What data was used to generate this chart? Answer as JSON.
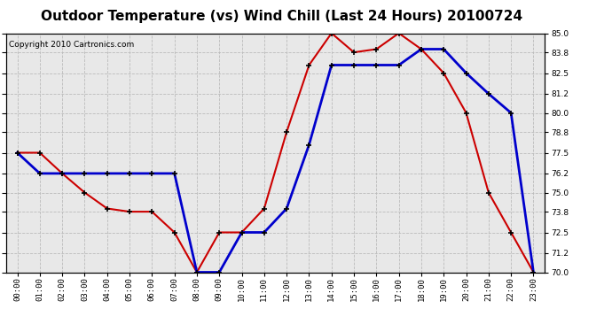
{
  "title": "Outdoor Temperature (vs) Wind Chill (Last 24 Hours) 20100724",
  "copyright": "Copyright 2010 Cartronics.com",
  "hours": [
    "00:00",
    "01:00",
    "02:00",
    "03:00",
    "04:00",
    "05:00",
    "06:00",
    "07:00",
    "08:00",
    "09:00",
    "10:00",
    "11:00",
    "12:00",
    "13:00",
    "14:00",
    "15:00",
    "16:00",
    "17:00",
    "18:00",
    "19:00",
    "20:00",
    "21:00",
    "22:00",
    "23:00"
  ],
  "outdoor_temp": [
    77.5,
    77.5,
    76.2,
    75.0,
    74.0,
    73.8,
    73.8,
    72.5,
    70.0,
    72.5,
    72.5,
    74.0,
    78.8,
    83.0,
    85.0,
    83.8,
    84.0,
    85.0,
    84.0,
    82.5,
    80.0,
    75.0,
    72.5,
    70.0
  ],
  "wind_chill": [
    77.5,
    76.2,
    76.2,
    76.2,
    76.2,
    76.2,
    76.2,
    76.2,
    70.0,
    70.0,
    72.5,
    72.5,
    74.0,
    78.0,
    83.0,
    83.0,
    83.0,
    83.0,
    84.0,
    84.0,
    82.5,
    81.2,
    80.0,
    70.0
  ],
  "ylim": [
    70.0,
    85.0
  ],
  "yticks": [
    70.0,
    71.2,
    72.5,
    73.8,
    75.0,
    76.2,
    77.5,
    78.8,
    80.0,
    81.2,
    82.5,
    83.8,
    85.0
  ],
  "ytick_labels": [
    "70.0",
    "71.2",
    "72.5",
    "73.8",
    "75.0",
    "76.2",
    "77.5",
    "78.8",
    "80.0",
    "81.2",
    "82.5",
    "83.8",
    "85.0"
  ],
  "line_color_temp": "#cc0000",
  "line_color_chill": "#0000cc",
  "bg_color": "#ffffff",
  "plot_bg_color": "#e8e8e8",
  "grid_color": "#bbbbbb",
  "title_fontsize": 11,
  "copyright_fontsize": 6.5
}
